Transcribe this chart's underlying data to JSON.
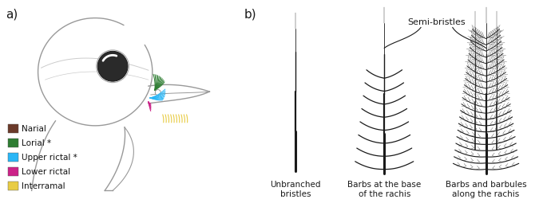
{
  "legend_items": [
    {
      "label": "Narial",
      "color": "#6B3A2A"
    },
    {
      "label": "Lorial *",
      "color": "#2E7D32"
    },
    {
      "label": "Upper rictal *",
      "color": "#29B6F6"
    },
    {
      "label": "Lower rictal",
      "color": "#CC2288"
    },
    {
      "label": "Interramal",
      "color": "#E8CC44"
    }
  ],
  "panel_a_label": "a)",
  "panel_b_label": "b)",
  "bristle_labels": [
    "Unbranched\nbristles",
    "Barbs at the base\nof the rachis",
    "Barbs and barbules\nalong the rachis"
  ],
  "semi_bristles_label": "Semi-bristles",
  "bg_color": "#ffffff",
  "line_color": "#1a1a1a",
  "bird_outline_color": "#999999"
}
